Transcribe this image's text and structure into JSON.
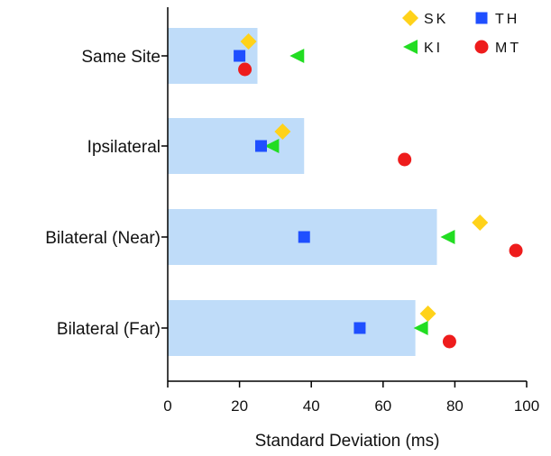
{
  "chart_data": {
    "type": "bar",
    "orientation": "horizontal",
    "title": "",
    "xlabel": "Standard Deviation (ms)",
    "ylabel": "",
    "xlim": [
      0,
      100
    ],
    "xticks": [
      "0",
      "20",
      "40",
      "60",
      "80",
      "100"
    ],
    "grid": false,
    "legend_placement": "top-right",
    "categories": [
      "Same Site",
      "Ipsilateral",
      "Bilateral (Near)",
      "Bilateral (Far)"
    ],
    "bars": {
      "values": [
        25,
        38,
        75,
        69
      ],
      "color": "#bfdcf9"
    },
    "series": [
      {
        "name": "SK",
        "marker": "diamond",
        "color": "#ffd21a",
        "values": [
          22.5,
          32,
          87,
          72.5
        ]
      },
      {
        "name": "KI",
        "marker": "triangle-left",
        "color": "#22dd22",
        "values": [
          36,
          29,
          78,
          70.5
        ]
      },
      {
        "name": "TH",
        "marker": "square",
        "color": "#1f4fff",
        "values": [
          20,
          26,
          38,
          53.5
        ]
      },
      {
        "name": "MT",
        "marker": "circle",
        "color": "#ee1c1c",
        "values": [
          21.5,
          66,
          97,
          78.5
        ]
      }
    ],
    "legend": [
      {
        "label": "SK",
        "marker": "diamond",
        "color": "#ffd21a"
      },
      {
        "label": "TH",
        "marker": "square",
        "color": "#1f4fff"
      },
      {
        "label": "KI",
        "marker": "triangle-left",
        "color": "#22dd22"
      },
      {
        "label": "MT",
        "marker": "circle",
        "color": "#ee1c1c"
      }
    ]
  }
}
